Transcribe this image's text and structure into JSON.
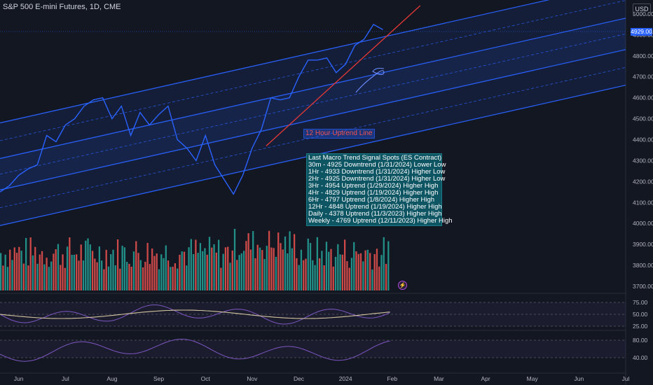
{
  "header": {
    "title": "S&P 500 E-mini Futures, 1D, CME"
  },
  "currency_label": "USD",
  "last_price_tag": "4929.00",
  "annotation": {
    "label": "12 Hour Uptrend Line"
  },
  "signal_panel": {
    "title": "Last Macro Trend Signal Spots (ES Contract)",
    "lines": [
      "30m - 4925 Downtrend (1/31/2024) Lower Low",
      "1Hr - 4933 Downtrend (1/31/2024) Higher Low",
      "2Hr - 4925 Downtrend (1/31/2024) Higher Low",
      "3Hr - 4954 Uptrend (1/29/2024) Higher High",
      "4Hr - 4829 Uptrend (1/19/2024) Higher High",
      "6Hr - 4797 Uptrend (1/8/2024) Higher High",
      "12Hr - 4848 Uptrend (1/19/2024) Higher High",
      "Daily - 4378 Uptrend (11/3/2023) Higher High",
      "Weekly - 4769 Uptrend (12/11/2023) Higher High"
    ]
  },
  "colors": {
    "background": "#131722",
    "price_line": "#2962ff",
    "channel": "#2962ff",
    "trend_line": "#e53935",
    "volume_up": "#26a69a",
    "volume_down": "#ef5350",
    "osc_1": "#7e57c2",
    "osc_2": "#d4c5a0"
  },
  "chart_data": {
    "type": "line",
    "title": "S&P 500 E-mini Futures, 1D, CME",
    "y_axis": {
      "ticks": [
        5000,
        4900,
        4800,
        4700,
        4600,
        4500,
        4400,
        4300,
        4200,
        4100,
        4000,
        3900,
        3800,
        3700
      ],
      "tick_labels": [
        "5000.00",
        "4900.00",
        "4800.00",
        "4700.00",
        "4600.00",
        "4500.00",
        "4400.00",
        "4300.00",
        "4200.00",
        "4100.00",
        "4000.00",
        "3900.00",
        "3800.00",
        "3700.00"
      ],
      "ylim": [
        3680,
        5050
      ]
    },
    "x_axis": {
      "ticks": [
        "Jun",
        "Jul",
        "Aug",
        "Sep",
        "Oct",
        "Nov",
        "Dec",
        "2024",
        "Feb",
        "Mar",
        "Apr",
        "May",
        "Jun",
        "Jul"
      ],
      "tick_month_index": [
        1,
        2,
        3,
        4,
        5,
        6,
        7,
        8,
        9,
        10,
        11,
        12,
        13,
        14
      ],
      "start_month_index": 0.6,
      "end_month_index": 14.0
    },
    "price_series": {
      "name": "",
      "month_index": [
        0.6,
        0.8,
        1.0,
        1.2,
        1.4,
        1.6,
        1.8,
        2.0,
        2.2,
        2.4,
        2.6,
        2.8,
        3.0,
        3.2,
        3.4,
        3.6,
        3.8,
        4.0,
        4.2,
        4.4,
        4.6,
        4.8,
        5.0,
        5.2,
        5.4,
        5.6,
        5.8,
        6.0,
        6.2,
        6.4,
        6.6,
        6.8,
        7.0,
        7.2,
        7.4,
        7.6,
        7.8,
        8.0,
        8.2,
        8.4,
        8.6,
        8.8
      ],
      "values": [
        4150,
        4180,
        4230,
        4260,
        4280,
        4420,
        4390,
        4470,
        4500,
        4560,
        4590,
        4600,
        4500,
        4560,
        4420,
        4530,
        4470,
        4520,
        4560,
        4400,
        4360,
        4300,
        4420,
        4280,
        4210,
        4140,
        4230,
        4360,
        4450,
        4600,
        4590,
        4600,
        4700,
        4780,
        4780,
        4790,
        4720,
        4760,
        4850,
        4880,
        4950,
        4925
      ]
    },
    "channel": {
      "lines": [
        {
          "name": "",
          "start": [
            0.6,
            4480
          ],
          "end": [
            14.0,
            5150
          ]
        },
        {
          "name": "",
          "start": [
            0.6,
            4310
          ],
          "end": [
            14.0,
            4980
          ]
        },
        {
          "name": "",
          "start": [
            0.6,
            4160
          ],
          "end": [
            14.0,
            4830
          ]
        },
        {
          "name": "",
          "start": [
            0.6,
            3990
          ],
          "end": [
            14.0,
            4660
          ]
        }
      ]
    },
    "trend_line": {
      "name": "12 Hour Uptrend Line",
      "start": [
        6.3,
        4370
      ],
      "end": [
        9.6,
        5040
      ]
    },
    "volume": {
      "bars": 170,
      "note": ""
    },
    "oscillator_1": {
      "levels": [
        75.0,
        50.0,
        25.0
      ],
      "tick_labels": [
        "75.00",
        "50.00",
        "25.00"
      ]
    },
    "oscillator_2": {
      "levels": [
        80.0,
        40.0
      ],
      "tick_labels": [
        "80.00",
        "40.00"
      ]
    }
  }
}
